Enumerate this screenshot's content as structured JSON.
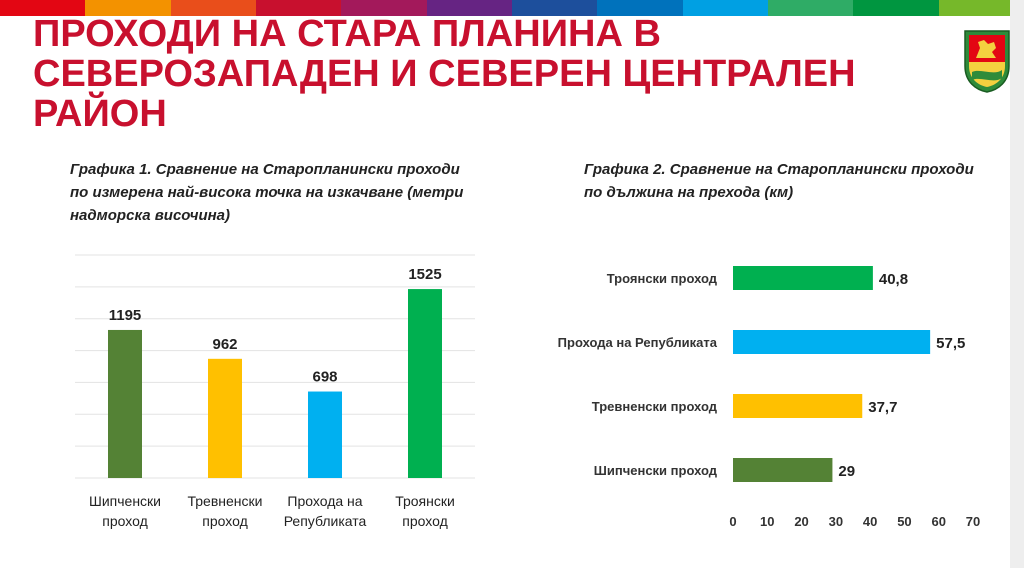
{
  "header": {
    "stripe_colors": [
      "#e30613",
      "#f39200",
      "#e94e1b",
      "#c8102e",
      "#a3195b",
      "#662483",
      "#1d4f9c",
      "#0072bc",
      "#00a0e3",
      "#2fac66",
      "#009640",
      "#76b82a"
    ],
    "title": "ПРОХОДИ НА СТАРА ПЛАНИНА В СЕВЕРОЗАПАДЕН И СЕВЕРЕН ЦЕНТРАЛЕН РАЙОН",
    "title_color": "#c8102e",
    "logo_icon": "lion-coat-of-arms-icon"
  },
  "chart_data": [
    {
      "type": "bar",
      "title": "Графика 1. Сравнение на Старопланински проходи по измерена най-висока точка на изкачване (метри надморска височина)",
      "categories": [
        "Шипченски проход",
        "Тревненски проход",
        "Прохода на Републиката",
        "Троянски проход"
      ],
      "values": [
        1195,
        962,
        698,
        1525
      ],
      "colors": [
        "#548235",
        "#ffc000",
        "#00b0f0",
        "#00b050"
      ],
      "ylim": [
        0,
        1800
      ],
      "grid": true,
      "xlabel": "",
      "ylabel": ""
    },
    {
      "type": "bar",
      "orientation": "horizontal",
      "title": "Графика 2. Сравнение на Старопланински проходи по дължина на прехода (км)",
      "categories": [
        "Троянски проход",
        "Прохода на Републиката",
        "Тревненски проход",
        "Шипченски проход"
      ],
      "values": [
        40.8,
        57.5,
        37.7,
        29
      ],
      "value_labels": [
        "40,8",
        "57,5",
        "37,7",
        "29"
      ],
      "colors": [
        "#00b050",
        "#00b0f0",
        "#ffc000",
        "#548235"
      ],
      "xlim": [
        0,
        70
      ],
      "ticks": [
        0,
        10,
        20,
        30,
        40,
        50,
        60,
        70
      ],
      "grid": false,
      "xlabel": "",
      "ylabel": ""
    }
  ]
}
